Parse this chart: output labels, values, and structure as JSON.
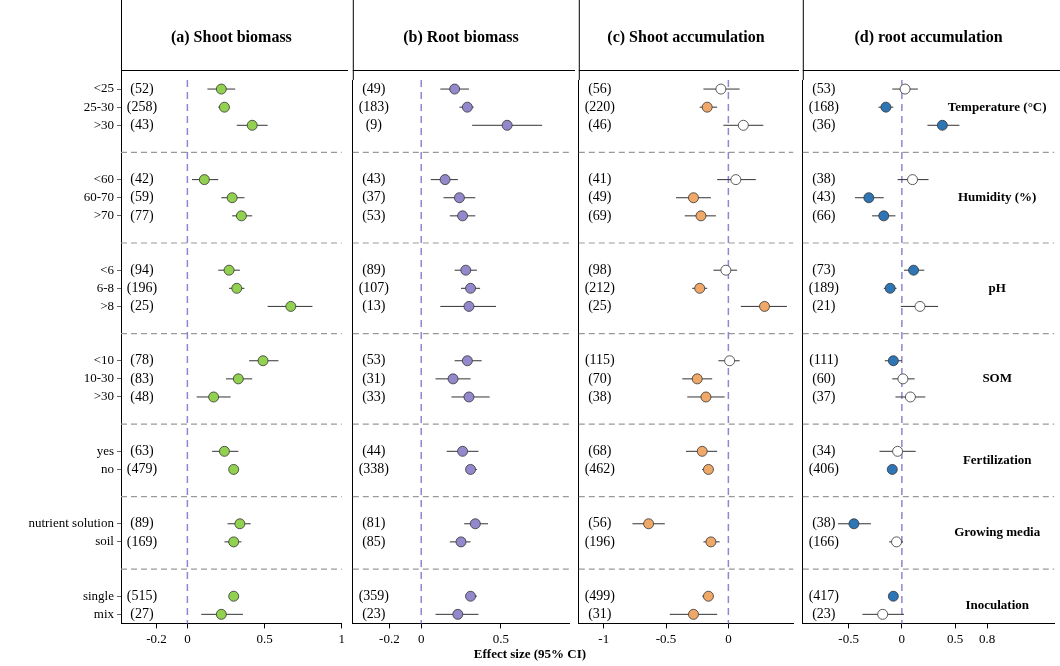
{
  "chart_data": [
    {
      "type": "scatter",
      "title": "(a) Shoot biomass",
      "orientation": "horizontal",
      "marker": "circle",
      "categories": [
        "<25",
        "25-30",
        ">30",
        null,
        null,
        "<60",
        "60-70",
        ">70",
        null,
        null,
        "<6",
        "6-8",
        ">8",
        null,
        null,
        "<10",
        "10-30",
        ">30",
        null,
        null,
        "yes",
        "no",
        null,
        null,
        "nutrient solution",
        "soil",
        null,
        null,
        "single",
        "mix"
      ],
      "xlim": [
        -0.43,
        1
      ],
      "xticks": [
        -0.2,
        0,
        0.5,
        1
      ],
      "series": [
        {
          "color": "#92d050",
          "values": [
            0.22,
            0.24,
            0.42,
            null,
            null,
            0.11,
            0.29,
            0.35,
            null,
            null,
            0.27,
            0.32,
            0.67,
            null,
            null,
            0.49,
            0.33,
            0.17,
            null,
            null,
            0.24,
            0.3,
            null,
            null,
            0.34,
            0.3,
            null,
            null,
            0.3,
            0.22
          ],
          "errors": [
            [
              0.13,
              0.31
            ],
            [
              0.2,
              0.27
            ],
            [
              0.32,
              0.52
            ],
            null,
            null,
            [
              0.03,
              0.2
            ],
            [
              0.22,
              0.37
            ],
            [
              0.29,
              0.42
            ],
            null,
            null,
            [
              0.2,
              0.34
            ],
            [
              0.27,
              0.37
            ],
            [
              0.52,
              0.81
            ],
            null,
            null,
            [
              0.4,
              0.59
            ],
            [
              0.25,
              0.42
            ],
            [
              0.06,
              0.28
            ],
            null,
            null,
            [
              0.16,
              0.33
            ],
            [
              0.28,
              0.33
            ],
            null,
            null,
            [
              0.26,
              0.41
            ],
            [
              0.24,
              0.35
            ],
            null,
            null,
            [
              0.28,
              0.32
            ],
            [
              0.09,
              0.36
            ]
          ]
        }
      ],
      "ref_lines": [
        {
          "axis": "x",
          "value": 0,
          "color": "#8e86d0",
          "line_style": "dashed"
        }
      ],
      "annotations": [
        "(52)",
        "(258)",
        "(43)",
        "(42)",
        "(59)",
        "(77)",
        "(94)",
        "(196)",
        "(25)",
        "(78)",
        "(83)",
        "(48)",
        "(63)",
        "(479)",
        "(89)",
        "(169)",
        "(515)",
        "(27)"
      ]
    },
    {
      "type": "scatter",
      "title": "(b) Root biomass",
      "xlabel": "Effect size (95% CI)",
      "orientation": "horizontal",
      "marker": "circle",
      "categories": [
        null,
        null,
        null,
        null,
        null,
        null,
        null,
        null,
        null,
        null,
        null,
        null,
        null,
        null,
        null,
        null,
        null,
        null,
        null,
        null,
        null,
        null,
        null,
        null,
        null,
        null,
        null,
        null,
        null,
        null
      ],
      "xlim": [
        -0.43,
        0.93
      ],
      "xticks": [
        -0.2,
        0,
        0.5
      ],
      "series": [
        {
          "color": "#9488cc",
          "values": [
            0.21,
            0.29,
            0.54,
            null,
            null,
            0.15,
            0.24,
            0.26,
            null,
            null,
            0.28,
            0.31,
            0.3,
            null,
            null,
            0.29,
            0.2,
            0.3,
            null,
            null,
            0.26,
            0.31,
            null,
            null,
            0.34,
            0.25,
            null,
            null,
            0.31,
            0.23
          ],
          "errors": [
            [
              0.12,
              0.3
            ],
            [
              0.24,
              0.33
            ],
            [
              0.32,
              0.76
            ],
            null,
            null,
            [
              0.06,
              0.23
            ],
            [
              0.14,
              0.34
            ],
            [
              0.18,
              0.34
            ],
            null,
            null,
            [
              0.21,
              0.35
            ],
            [
              0.25,
              0.37
            ],
            [
              0.12,
              0.47
            ],
            null,
            null,
            [
              0.21,
              0.38
            ],
            [
              0.09,
              0.31
            ],
            [
              0.19,
              0.43
            ],
            null,
            null,
            [
              0.16,
              0.36
            ],
            [
              0.28,
              0.35
            ],
            null,
            null,
            [
              0.27,
              0.42
            ],
            [
              0.18,
              0.31
            ],
            null,
            null,
            [
              0.28,
              0.35
            ],
            [
              0.09,
              0.36
            ]
          ]
        }
      ],
      "ref_lines": [
        {
          "axis": "x",
          "value": 0,
          "color": "#8e86d0",
          "line_style": "dashed"
        }
      ],
      "annotations": [
        "(49)",
        "(183)",
        "(9)",
        "(43)",
        "(37)",
        "(53)",
        "(89)",
        "(107)",
        "(13)",
        "(53)",
        "(31)",
        "(33)",
        "(44)",
        "(338)",
        "(81)",
        "(85)",
        "(359)",
        "(23)"
      ]
    },
    {
      "type": "scatter",
      "title": "(c) Shoot accumulation",
      "orientation": "horizontal",
      "marker": "circle",
      "categories": [
        null,
        null,
        null,
        null,
        null,
        null,
        null,
        null,
        null,
        null,
        null,
        null,
        null,
        null,
        null,
        null,
        null,
        null,
        null,
        null,
        null,
        null,
        null,
        null,
        null,
        null,
        null,
        null,
        null,
        null
      ],
      "xlim": [
        -1.2,
        0.52
      ],
      "xticks": [
        -1,
        -0.5,
        0
      ],
      "series": [
        {
          "color": "#f0a868",
          "values": [
            null,
            -0.17,
            null,
            null,
            null,
            null,
            -0.28,
            -0.22,
            null,
            null,
            null,
            -0.23,
            0.29,
            null,
            null,
            null,
            -0.25,
            -0.18,
            null,
            null,
            -0.21,
            -0.16,
            null,
            null,
            -0.64,
            -0.14,
            null,
            null,
            -0.16,
            -0.28
          ],
          "errors": [
            null,
            [
              -0.23,
              -0.09
            ],
            null,
            null,
            null,
            null,
            [
              -0.42,
              -0.14
            ],
            [
              -0.35,
              -0.1
            ],
            null,
            null,
            null,
            [
              -0.29,
              -0.17
            ],
            [
              0.1,
              0.47
            ],
            null,
            null,
            null,
            [
              -0.37,
              -0.13
            ],
            [
              -0.33,
              -0.03
            ],
            null,
            null,
            [
              -0.34,
              -0.09
            ],
            [
              -0.21,
              -0.12
            ],
            null,
            null,
            [
              -0.77,
              -0.51
            ],
            [
              -0.2,
              -0.07
            ],
            null,
            null,
            [
              -0.21,
              -0.12
            ],
            [
              -0.47,
              -0.09
            ]
          ]
        },
        {
          "color": "#ffffff",
          "values": [
            -0.06,
            null,
            0.12,
            null,
            null,
            0.06,
            null,
            null,
            null,
            null,
            -0.02,
            null,
            null,
            null,
            null,
            0.01,
            null,
            null,
            null,
            null,
            null,
            null,
            null,
            null,
            null,
            null,
            null,
            null,
            null,
            null
          ],
          "errors": [
            [
              -0.2,
              0.09
            ],
            null,
            [
              -0.04,
              0.28
            ],
            null,
            null,
            [
              -0.09,
              0.22
            ],
            null,
            null,
            null,
            null,
            [
              -0.12,
              0.07
            ],
            null,
            null,
            null,
            null,
            [
              -0.08,
              0.09
            ],
            null,
            null,
            null,
            null,
            null,
            null,
            null,
            null,
            null,
            null,
            null,
            null,
            null,
            null
          ]
        }
      ],
      "ref_lines": [
        {
          "axis": "x",
          "value": 0,
          "color": "#8e86d0",
          "line_style": "dashed"
        }
      ],
      "annotations": [
        "(56)",
        "(220)",
        "(46)",
        "(41)",
        "(49)",
        "(69)",
        "(98)",
        "(212)",
        "(25)",
        "(115)",
        "(70)",
        "(38)",
        "(68)",
        "(462)",
        "(56)",
        "(196)",
        "(499)",
        "(31)"
      ]
    },
    {
      "type": "scatter",
      "title": "(d) root accumulation",
      "orientation": "horizontal",
      "marker": "circle",
      "categories": [
        null,
        null,
        null,
        null,
        null,
        null,
        null,
        null,
        null,
        null,
        null,
        null,
        null,
        null,
        null,
        null,
        null,
        null,
        null,
        null,
        null,
        null,
        null,
        null,
        null,
        null,
        null,
        null,
        null,
        null
      ],
      "xlim": [
        -0.93,
        1.43
      ],
      "xticks": [
        -0.5,
        0,
        0.5,
        0.8
      ],
      "series": [
        {
          "color": "#2e75b6",
          "values": [
            null,
            -0.15,
            0.38,
            null,
            null,
            null,
            -0.31,
            -0.17,
            null,
            null,
            0.11,
            -0.11,
            null,
            null,
            null,
            -0.08,
            null,
            null,
            null,
            null,
            null,
            -0.09,
            null,
            null,
            -0.45,
            null,
            null,
            null,
            -0.08,
            null
          ],
          "errors": [
            null,
            [
              -0.22,
              -0.08
            ],
            [
              0.24,
              0.54
            ],
            null,
            null,
            null,
            [
              -0.44,
              -0.17
            ],
            [
              -0.28,
              -0.06
            ],
            null,
            null,
            [
              0.02,
              0.21
            ],
            [
              -0.17,
              -0.05
            ],
            null,
            null,
            null,
            [
              -0.16,
              0.0
            ],
            null,
            null,
            null,
            null,
            null,
            [
              -0.13,
              -0.05
            ],
            null,
            null,
            [
              -0.6,
              -0.29
            ],
            null,
            null,
            null,
            [
              -0.12,
              -0.04
            ],
            null
          ]
        },
        {
          "color": "#ffffff",
          "values": [
            0.03,
            null,
            null,
            null,
            null,
            0.1,
            null,
            null,
            null,
            null,
            null,
            null,
            0.17,
            null,
            null,
            null,
            0.01,
            0.08,
            null,
            null,
            -0.04,
            null,
            null,
            null,
            null,
            -0.05,
            null,
            null,
            null,
            -0.18
          ],
          "errors": [
            [
              -0.09,
              0.15
            ],
            null,
            null,
            null,
            null,
            [
              -0.04,
              0.25
            ],
            null,
            null,
            null,
            null,
            null,
            null,
            [
              -0.01,
              0.34
            ],
            null,
            null,
            null,
            [
              -0.09,
              0.12
            ],
            [
              -0.06,
              0.22
            ],
            null,
            null,
            [
              -0.21,
              0.13
            ],
            null,
            null,
            null,
            null,
            [
              -0.12,
              0.01
            ],
            null,
            null,
            null,
            [
              -0.37,
              0.02
            ]
          ]
        }
      ],
      "ref_lines": [
        {
          "axis": "x",
          "value": 0,
          "color": "#8e86d0",
          "line_style": "dashed"
        }
      ],
      "annotations": [
        "(53)",
        "(168)",
        "(36)",
        "(38)",
        "(43)",
        "(66)",
        "(73)",
        "(189)",
        "(21)",
        "(111)",
        "(60)",
        "(37)",
        "(34)",
        "(406)",
        "(38)",
        "(166)",
        "(417)",
        "(23)",
        "Temperature (°C)",
        "Humidity (%)",
        "pH",
        "SOM",
        "Fertilization",
        "Growing media",
        "Inoculation"
      ]
    }
  ]
}
